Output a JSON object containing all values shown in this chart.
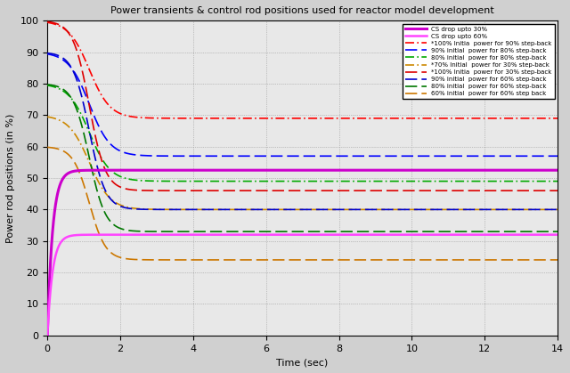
{
  "title": "Power transients & control rod positions used for reactor model development",
  "xlabel": "Time (sec)",
  "ylabel": "Power rod positions (in %)",
  "xlim": [
    0,
    14
  ],
  "ylim": [
    0,
    100
  ],
  "xticks": [
    0,
    2,
    4,
    6,
    8,
    10,
    12,
    14
  ],
  "yticks": [
    0,
    10,
    20,
    30,
    40,
    50,
    60,
    70,
    80,
    90,
    100
  ],
  "legend_entries": [
    "CS drop upto 30%",
    "CS drop upto 60%",
    "*100% Initia  power for 90% step-back",
    "90% initial  power for 80% step-back",
    "80% initial  power for 80% step-back",
    "*70% Initial  power for 30% step-back",
    "*100% Initia  power for 30% step-back",
    "90% initial  power for 60% step-back",
    "80% initial  power for 60% step-back",
    "60% initial  power for 60% step back"
  ],
  "bg_color": "#e8e8e8",
  "fig_color": "#d0d0d0"
}
